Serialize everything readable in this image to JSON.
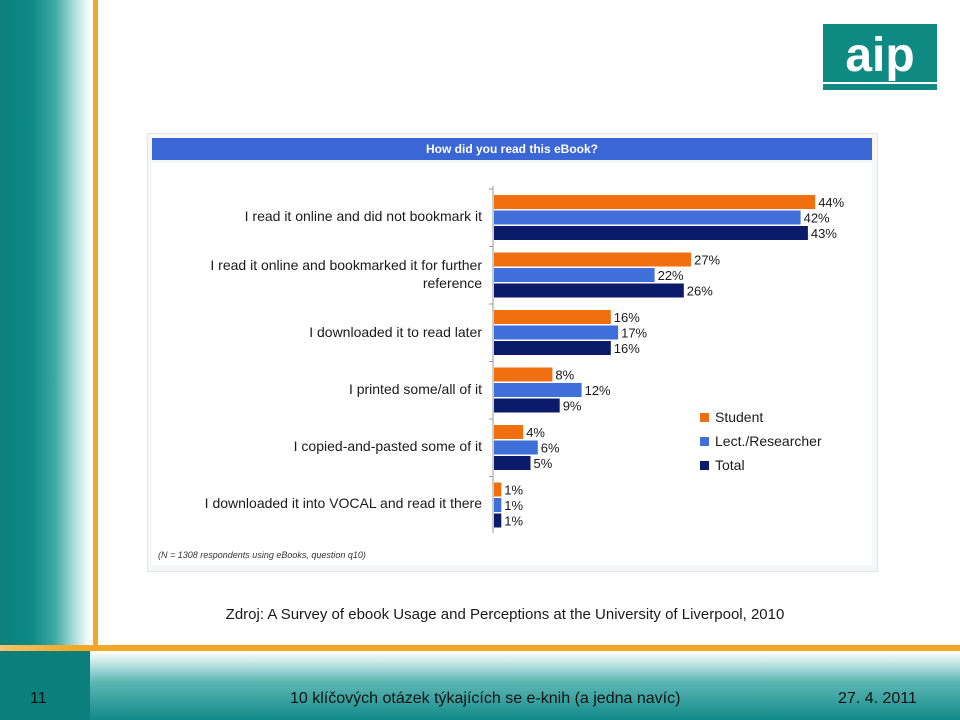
{
  "chart_data": {
    "type": "bar",
    "orientation": "horizontal",
    "title": "How did you read this eBook?",
    "categories": [
      "I read it online and did not bookmark it",
      "I read it online and bookmarked it for further reference",
      "I downloaded it to read later",
      "I printed some/all of it",
      "I copied-and-pasted some of it",
      "I downloaded it into VOCAL and read it there"
    ],
    "series": [
      {
        "name": "Student",
        "color": "#f26f10",
        "values": [
          44,
          27,
          16,
          8,
          4,
          1
        ]
      },
      {
        "name": "Lect./Researcher",
        "color": "#3f6fd8",
        "values": [
          42,
          22,
          17,
          12,
          6,
          1
        ]
      },
      {
        "name": "Total",
        "color": "#0c1a6b",
        "values": [
          43,
          26,
          16,
          9,
          5,
          1
        ]
      }
    ],
    "value_suffix": "%",
    "xlim": [
      0,
      50
    ],
    "legend_position": "right",
    "grid": false,
    "footnote": "(N = 1308 respondents using eBooks, question q10)"
  },
  "source_text": "Zdroj: A Survey of ebook Usage and Perceptions at the University of Liverpool, 2010",
  "footer": {
    "slide_number": "11",
    "title": "10 klíčových otázek týkajících se e-knih (a jedna navíc)",
    "date": "27. 4. 2011"
  },
  "logo": {
    "text": "aip",
    "color": "#0e8a83"
  }
}
